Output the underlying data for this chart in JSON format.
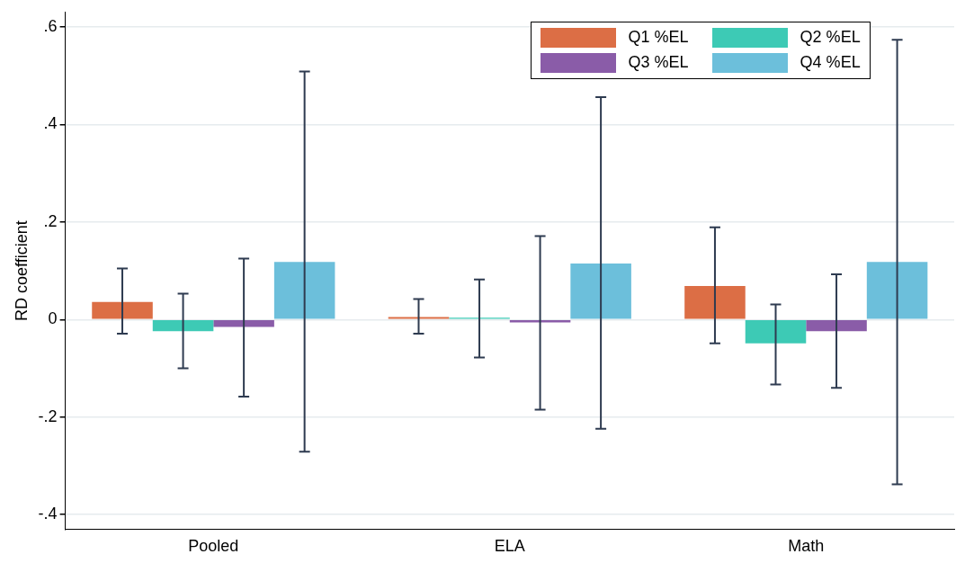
{
  "chart_data": {
    "type": "bar",
    "ylabel": "RD coefficient",
    "categories": [
      "Pooled",
      "ELA",
      "Math"
    ],
    "series": [
      {
        "name": "Q1 %EL",
        "color": "#dc6e45",
        "values": [
          0.036,
          0.005,
          0.069
        ],
        "errors": [
          [
            -0.029,
            0.105
          ],
          [
            -0.029,
            0.042
          ],
          [
            -0.049,
            0.189
          ]
        ]
      },
      {
        "name": "Q2 %EL",
        "color": "#3dcab5",
        "values": [
          -0.024,
          0.004,
          -0.049
        ],
        "errors": [
          [
            -0.1,
            0.053
          ],
          [
            -0.078,
            0.082
          ],
          [
            -0.133,
            0.031
          ]
        ]
      },
      {
        "name": "Q3 %EL",
        "color": "#8a5ca8",
        "values": [
          -0.015,
          -0.006,
          -0.024
        ],
        "errors": [
          [
            -0.158,
            0.125
          ],
          [
            -0.185,
            0.171
          ],
          [
            -0.14,
            0.093
          ]
        ]
      },
      {
        "name": "Q4 %EL",
        "color": "#6cbfdb",
        "values": [
          0.118,
          0.115,
          0.118
        ],
        "errors": [
          [
            -0.271,
            0.509
          ],
          [
            -0.224,
            0.456
          ],
          [
            -0.338,
            0.574
          ]
        ]
      }
    ],
    "ylim": [
      -0.43,
      0.63
    ],
    "yticks": [
      {
        "value": -0.4,
        "label": "-.4"
      },
      {
        "value": -0.2,
        "label": "-.2"
      },
      0,
      {
        "value": 0.2,
        "label": ".2"
      },
      {
        "value": 0.4,
        "label": ".4"
      },
      {
        "value": 0.6,
        "label": ".6"
      }
    ],
    "grid": "y",
    "legend": "top right"
  }
}
